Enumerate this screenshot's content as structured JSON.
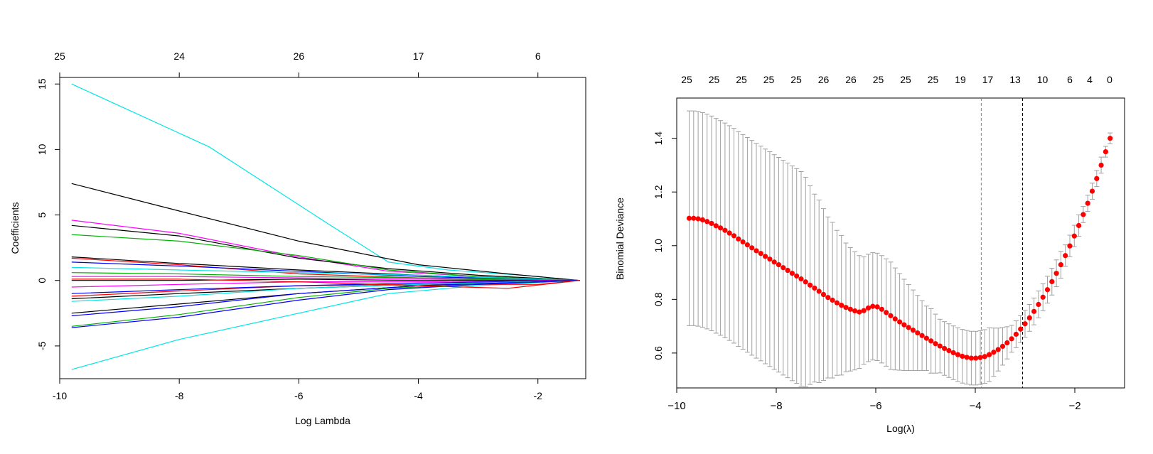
{
  "chart_data": [
    {
      "type": "line",
      "title": "",
      "xlabel": "Log Lambda",
      "ylabel": "Coefficients",
      "xlim": [
        -10,
        -1.2
      ],
      "ylim": [
        -7.5,
        15.5
      ],
      "x_ticks": [
        -10,
        -8,
        -6,
        -4,
        -2
      ],
      "y_ticks": [
        -5,
        0,
        5,
        10,
        15
      ],
      "top_axis": {
        "x": [
          -10,
          -8,
          -6,
          -4,
          -2
        ],
        "labels": [
          "25",
          "24",
          "26",
          "17",
          "6"
        ]
      },
      "grid": false,
      "series": [
        {
          "color": "#00e5e5",
          "points": [
            [
              -9.8,
              15.0
            ],
            [
              -7.5,
              10.2
            ],
            [
              -5.5,
              4.3
            ],
            [
              -4.5,
              1.4
            ],
            [
              -3.5,
              0.8
            ],
            [
              -2.0,
              0.3
            ],
            [
              -1.3,
              0.0
            ]
          ]
        },
        {
          "color": "#00e5e5",
          "points": [
            [
              -9.8,
              -6.8
            ],
            [
              -8.0,
              -4.5
            ],
            [
              -6.0,
              -2.5
            ],
            [
              -4.5,
              -1.0
            ],
            [
              -3.0,
              -0.4
            ],
            [
              -1.3,
              0.0
            ]
          ]
        },
        {
          "color": "#000000",
          "points": [
            [
              -9.8,
              7.4
            ],
            [
              -8.0,
              5.3
            ],
            [
              -6.0,
              3.0
            ],
            [
              -4.0,
              1.2
            ],
            [
              -2.5,
              0.5
            ],
            [
              -1.3,
              0.0
            ]
          ]
        },
        {
          "color": "#ff00ff",
          "points": [
            [
              -9.8,
              4.6
            ],
            [
              -8.0,
              3.6
            ],
            [
              -6.0,
              1.8
            ],
            [
              -4.5,
              0.7
            ],
            [
              -3.0,
              0.3
            ],
            [
              -1.3,
              0.0
            ]
          ]
        },
        {
          "color": "#000000",
          "points": [
            [
              -9.8,
              4.2
            ],
            [
              -8.0,
              3.4
            ],
            [
              -6.0,
              1.7
            ],
            [
              -4.5,
              0.9
            ],
            [
              -3.0,
              0.4
            ],
            [
              -1.3,
              0.0
            ]
          ]
        },
        {
          "color": "#00b000",
          "points": [
            [
              -9.8,
              3.5
            ],
            [
              -8.0,
              3.0
            ],
            [
              -6.0,
              1.9
            ],
            [
              -4.5,
              0.8
            ],
            [
              -3.0,
              0.3
            ],
            [
              -1.3,
              0.0
            ]
          ]
        },
        {
          "color": "#000000",
          "points": [
            [
              -9.8,
              1.8
            ],
            [
              -8.0,
              1.3
            ],
            [
              -6.0,
              0.8
            ],
            [
              -4.0,
              0.4
            ],
            [
              -1.3,
              0.0
            ]
          ]
        },
        {
          "color": "#ff0000",
          "points": [
            [
              -9.8,
              1.7
            ],
            [
              -8.0,
              1.2
            ],
            [
              -6.0,
              0.5
            ],
            [
              -4.0,
              0.2
            ],
            [
              -1.3,
              0.0
            ]
          ]
        },
        {
          "color": "#0000ff",
          "points": [
            [
              -9.8,
              1.4
            ],
            [
              -8.0,
              1.1
            ],
            [
              -6.0,
              0.7
            ],
            [
              -4.0,
              0.3
            ],
            [
              -1.3,
              0.0
            ]
          ]
        },
        {
          "color": "#00e5e5",
          "points": [
            [
              -9.8,
              1.0
            ],
            [
              -8.0,
              0.8
            ],
            [
              -6.0,
              0.6
            ],
            [
              -4.0,
              0.4
            ],
            [
              -1.3,
              0.0
            ]
          ]
        },
        {
          "color": "#00b000",
          "points": [
            [
              -9.8,
              0.6
            ],
            [
              -8.0,
              0.5
            ],
            [
              -6.0,
              0.3
            ],
            [
              -4.0,
              0.2
            ],
            [
              -1.3,
              0.0
            ]
          ]
        },
        {
          "color": "#ff00ff",
          "points": [
            [
              -9.8,
              0.3
            ],
            [
              -8.0,
              0.3
            ],
            [
              -6.0,
              0.2
            ],
            [
              -4.0,
              0.1
            ],
            [
              -1.3,
              0.0
            ]
          ]
        },
        {
          "color": "#000000",
          "points": [
            [
              -9.8,
              0.0
            ],
            [
              -8.0,
              0.0
            ],
            [
              -6.0,
              0.1
            ],
            [
              -4.0,
              0.0
            ],
            [
              -1.3,
              0.0
            ]
          ]
        },
        {
          "color": "#ff00ff",
          "points": [
            [
              -9.8,
              -0.5
            ],
            [
              -8.0,
              -0.3
            ],
            [
              -6.0,
              -0.1
            ],
            [
              -4.0,
              -0.1
            ],
            [
              -1.3,
              0.0
            ]
          ]
        },
        {
          "color": "#ff0000",
          "points": [
            [
              -9.8,
              -1.2
            ],
            [
              -8.0,
              -0.8
            ],
            [
              -6.0,
              -0.4
            ],
            [
              -4.0,
              -0.3
            ],
            [
              -2.0,
              -0.3
            ],
            [
              -1.3,
              0.0
            ]
          ]
        },
        {
          "color": "#0000ff",
          "points": [
            [
              -9.8,
              -1.0
            ],
            [
              -8.0,
              -0.7
            ],
            [
              -6.0,
              -0.4
            ],
            [
              -4.0,
              -0.2
            ],
            [
              -1.3,
              0.0
            ]
          ]
        },
        {
          "color": "#000000",
          "points": [
            [
              -9.8,
              -1.4
            ],
            [
              -8.0,
              -1.0
            ],
            [
              -6.0,
              -0.6
            ],
            [
              -4.0,
              -0.3
            ],
            [
              -1.3,
              0.0
            ]
          ]
        },
        {
          "color": "#00e5e5",
          "points": [
            [
              -9.8,
              -1.6
            ],
            [
              -8.0,
              -1.2
            ],
            [
              -6.0,
              -0.6
            ],
            [
              -4.0,
              -0.3
            ],
            [
              -1.3,
              0.0
            ]
          ]
        },
        {
          "color": "#000000",
          "points": [
            [
              -9.8,
              -2.5
            ],
            [
              -8.0,
              -1.8
            ],
            [
              -6.0,
              -1.0
            ],
            [
              -4.0,
              -0.4
            ],
            [
              -1.3,
              0.0
            ]
          ]
        },
        {
          "color": "#0000ff",
          "points": [
            [
              -9.8,
              -2.7
            ],
            [
              -8.0,
              -2.0
            ],
            [
              -6.0,
              -1.0
            ],
            [
              -4.0,
              -0.4
            ],
            [
              -1.3,
              0.0
            ]
          ]
        },
        {
          "color": "#00b000",
          "points": [
            [
              -9.8,
              -3.5
            ],
            [
              -8.0,
              -2.6
            ],
            [
              -6.0,
              -1.3
            ],
            [
              -4.5,
              -0.6
            ],
            [
              -3.0,
              -0.3
            ],
            [
              -1.3,
              0.0
            ]
          ]
        },
        {
          "color": "#0000ff",
          "points": [
            [
              -9.8,
              -3.6
            ],
            [
              -8.0,
              -2.8
            ],
            [
              -6.0,
              -1.5
            ],
            [
              -4.5,
              -0.7
            ],
            [
              -3.0,
              -0.3
            ],
            [
              -1.3,
              0.0
            ]
          ]
        },
        {
          "color": "#ff0000",
          "points": [
            [
              -9.8,
              0.1
            ],
            [
              -8.0,
              0.1
            ],
            [
              -6.0,
              -0.1
            ],
            [
              -4.0,
              -0.4
            ],
            [
              -2.5,
              -0.6
            ],
            [
              -1.3,
              0.0
            ]
          ]
        }
      ]
    },
    {
      "type": "scatter",
      "title": "",
      "xlabel": "Log(λ)",
      "ylabel": "Binomial Deviance",
      "xlim": [
        -10.0,
        -1.0
      ],
      "ylim": [
        0.47,
        1.55
      ],
      "x_ticks": [
        -10,
        -8,
        -6,
        -4,
        -2
      ],
      "y_ticks": [
        0.6,
        0.8,
        1.0,
        1.2,
        1.4
      ],
      "y_tick_labels": [
        "0.6",
        "0.8",
        "1.0",
        "1.2",
        "1.4"
      ],
      "top_axis": {
        "x": [
          -9.8,
          -9.25,
          -8.7,
          -8.15,
          -7.6,
          -7.05,
          -6.5,
          -5.95,
          -5.4,
          -4.85,
          -4.3,
          -3.75,
          -3.2,
          -2.65,
          -2.1,
          -1.7,
          -1.3
        ],
        "labels": [
          "25",
          "25",
          "25",
          "25",
          "25",
          "26",
          "26",
          "25",
          "25",
          "25",
          "19",
          "17",
          "13",
          "10",
          "6",
          "4",
          "0"
        ]
      },
      "vlines": [
        {
          "x": -3.88,
          "style": "dashed-gray"
        },
        {
          "x": -3.05,
          "style": "dashed-black"
        }
      ],
      "point_color": "#ff0000",
      "errorbar_color": "#a0a0a0",
      "grid": false,
      "x": [
        -9.75,
        -9.66,
        -9.57,
        -9.48,
        -9.39,
        -9.3,
        -9.21,
        -9.12,
        -9.03,
        -8.94,
        -8.85,
        -8.76,
        -8.67,
        -8.58,
        -8.49,
        -8.4,
        -8.31,
        -8.22,
        -8.13,
        -8.04,
        -7.95,
        -7.86,
        -7.77,
        -7.68,
        -7.59,
        -7.5,
        -7.41,
        -7.32,
        -7.23,
        -7.14,
        -7.05,
        -6.96,
        -6.87,
        -6.78,
        -6.69,
        -6.6,
        -6.51,
        -6.42,
        -6.33,
        -6.24,
        -6.15,
        -6.06,
        -5.97,
        -5.88,
        -5.79,
        -5.7,
        -5.61,
        -5.52,
        -5.43,
        -5.34,
        -5.25,
        -5.16,
        -5.07,
        -4.98,
        -4.89,
        -4.8,
        -4.71,
        -4.62,
        -4.53,
        -4.44,
        -4.35,
        -4.26,
        -4.17,
        -4.08,
        -3.99,
        -3.9,
        -3.81,
        -3.72,
        -3.63,
        -3.54,
        -3.45,
        -3.36,
        -3.27,
        -3.18,
        -3.09,
        -3.0,
        -2.91,
        -2.82,
        -2.73,
        -2.64,
        -2.55,
        -2.46,
        -2.37,
        -2.28,
        -2.19,
        -2.1,
        -2.01,
        -1.92,
        -1.83,
        -1.74,
        -1.65,
        -1.56,
        -1.47,
        -1.38,
        -1.29
      ],
      "y": [
        1.102,
        1.102,
        1.1,
        1.096,
        1.09,
        1.083,
        1.074,
        1.066,
        1.057,
        1.047,
        1.037,
        1.025,
        1.014,
        1.003,
        0.992,
        0.981,
        0.971,
        0.96,
        0.95,
        0.939,
        0.929,
        0.918,
        0.908,
        0.897,
        0.887,
        0.876,
        0.865,
        0.853,
        0.842,
        0.83,
        0.818,
        0.807,
        0.797,
        0.787,
        0.778,
        0.77,
        0.763,
        0.757,
        0.753,
        0.758,
        0.768,
        0.774,
        0.772,
        0.763,
        0.751,
        0.739,
        0.727,
        0.716,
        0.705,
        0.695,
        0.685,
        0.675,
        0.665,
        0.655,
        0.645,
        0.635,
        0.626,
        0.617,
        0.609,
        0.601,
        0.594,
        0.588,
        0.584,
        0.581,
        0.581,
        0.583,
        0.587,
        0.594,
        0.603,
        0.613,
        0.625,
        0.638,
        0.653,
        0.67,
        0.689,
        0.709,
        0.731,
        0.755,
        0.781,
        0.808,
        0.836,
        0.866,
        0.897,
        0.929,
        0.963,
        0.999,
        1.036,
        1.075,
        1.116,
        1.158,
        1.203,
        1.25,
        1.3,
        1.35,
        1.4
      ],
      "err": [
        0.4,
        0.4,
        0.4,
        0.4,
        0.4,
        0.4,
        0.4,
        0.4,
        0.4,
        0.4,
        0.4,
        0.4,
        0.4,
        0.4,
        0.4,
        0.4,
        0.4,
        0.4,
        0.4,
        0.4,
        0.4,
        0.4,
        0.4,
        0.4,
        0.4,
        0.4,
        0.39,
        0.37,
        0.35,
        0.34,
        0.32,
        0.3,
        0.29,
        0.27,
        0.26,
        0.24,
        0.23,
        0.22,
        0.21,
        0.2,
        0.2,
        0.2,
        0.2,
        0.2,
        0.2,
        0.2,
        0.19,
        0.18,
        0.17,
        0.16,
        0.15,
        0.14,
        0.13,
        0.12,
        0.12,
        0.11,
        0.1,
        0.1,
        0.1,
        0.1,
        0.1,
        0.1,
        0.1,
        0.1,
        0.1,
        0.1,
        0.1,
        0.1,
        0.09,
        0.08,
        0.07,
        0.06,
        0.05,
        0.05,
        0.05,
        0.05,
        0.05,
        0.05,
        0.05,
        0.05,
        0.05,
        0.05,
        0.05,
        0.05,
        0.04,
        0.04,
        0.04,
        0.04,
        0.03,
        0.03,
        0.03,
        0.03,
        0.03,
        0.02,
        0.02
      ]
    }
  ]
}
